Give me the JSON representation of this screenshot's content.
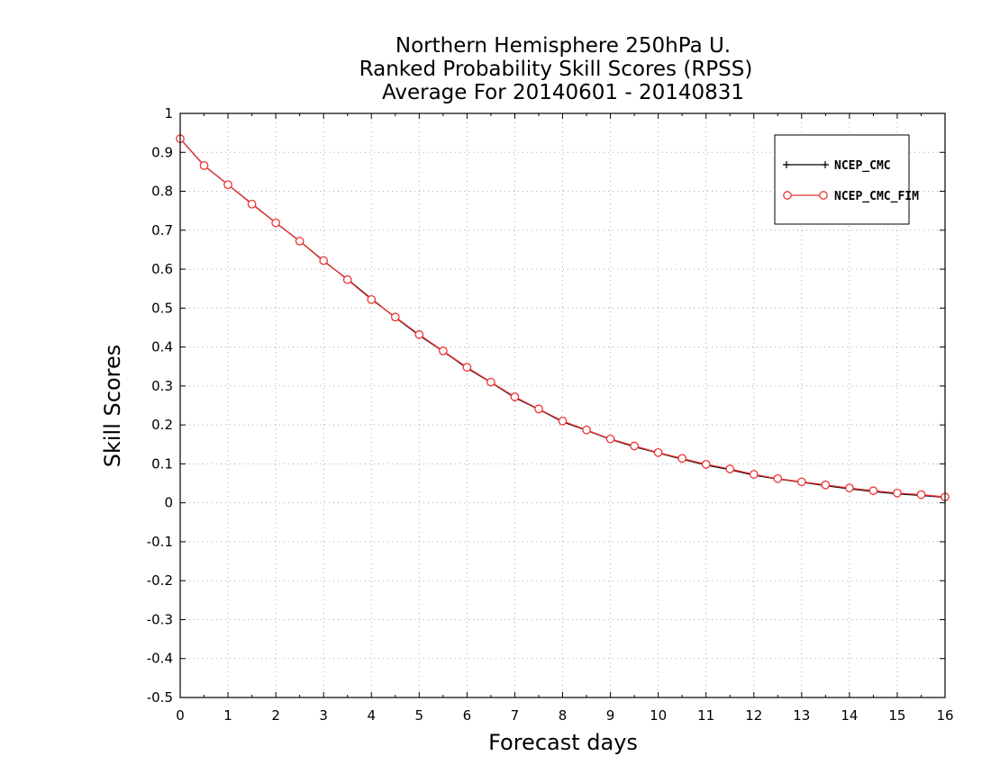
{
  "chart_data": {
    "type": "line",
    "title_lines": [
      "Northern Hemisphere 250hPa U.",
      "Ranked Probability Skill Scores (RPSS)",
      "Average For 20140601 - 20140831"
    ],
    "xlabel": "Forecast days",
    "ylabel": "Skill Scores",
    "xlim": [
      0,
      16
    ],
    "ylim": [
      -0.5,
      1
    ],
    "xticks": [
      0,
      1,
      2,
      3,
      4,
      5,
      6,
      7,
      8,
      9,
      10,
      11,
      12,
      13,
      14,
      15,
      16
    ],
    "xtick_labels": [
      "0",
      "1",
      "2",
      "3",
      "4",
      "5",
      "6",
      "7",
      "8",
      "9",
      "10",
      "11",
      "12",
      "13",
      "14",
      "15",
      "16"
    ],
    "yticks": [
      -0.5,
      -0.4,
      -0.3,
      -0.2,
      -0.1,
      0,
      0.1,
      0.2,
      0.3,
      0.4,
      0.5,
      0.6,
      0.7,
      0.8,
      0.9,
      1
    ],
    "ytick_labels": [
      "-0.5",
      "-0.4",
      "-0.3",
      "-0.2",
      "-0.1",
      "0",
      "0.1",
      "0.2",
      "0.3",
      "0.4",
      "0.5",
      "0.6",
      "0.7",
      "0.8",
      "0.9",
      "1"
    ],
    "grid": true,
    "legend_position": "top-right",
    "x": [
      0,
      0.5,
      1,
      1.5,
      2,
      2.5,
      3,
      3.5,
      4,
      4.5,
      5,
      5.5,
      6,
      6.5,
      7,
      7.5,
      8,
      8.5,
      9,
      9.5,
      10,
      10.5,
      11,
      11.5,
      12,
      12.5,
      13,
      13.5,
      14,
      14.5,
      15,
      15.5,
      16
    ],
    "series": [
      {
        "name": "NCEP_CMC",
        "color": "#000000",
        "marker": "plus",
        "values": [
          0.935,
          0.866,
          0.817,
          0.768,
          0.719,
          0.672,
          0.621,
          0.574,
          0.524,
          0.476,
          0.43,
          0.389,
          0.346,
          0.309,
          0.27,
          0.24,
          0.208,
          0.186,
          0.163,
          0.144,
          0.128,
          0.112,
          0.097,
          0.085,
          0.071,
          0.061,
          0.053,
          0.044,
          0.036,
          0.029,
          0.023,
          0.019,
          0.014
        ]
      },
      {
        "name": "NCEP_CMC_FIM",
        "color": "#ee3333",
        "marker": "circle",
        "values": [
          0.935,
          0.866,
          0.817,
          0.767,
          0.719,
          0.672,
          0.622,
          0.573,
          0.522,
          0.477,
          0.432,
          0.39,
          0.348,
          0.31,
          0.272,
          0.241,
          0.21,
          0.187,
          0.164,
          0.146,
          0.129,
          0.114,
          0.099,
          0.087,
          0.073,
          0.062,
          0.054,
          0.046,
          0.038,
          0.031,
          0.025,
          0.021,
          0.015
        ]
      }
    ]
  }
}
